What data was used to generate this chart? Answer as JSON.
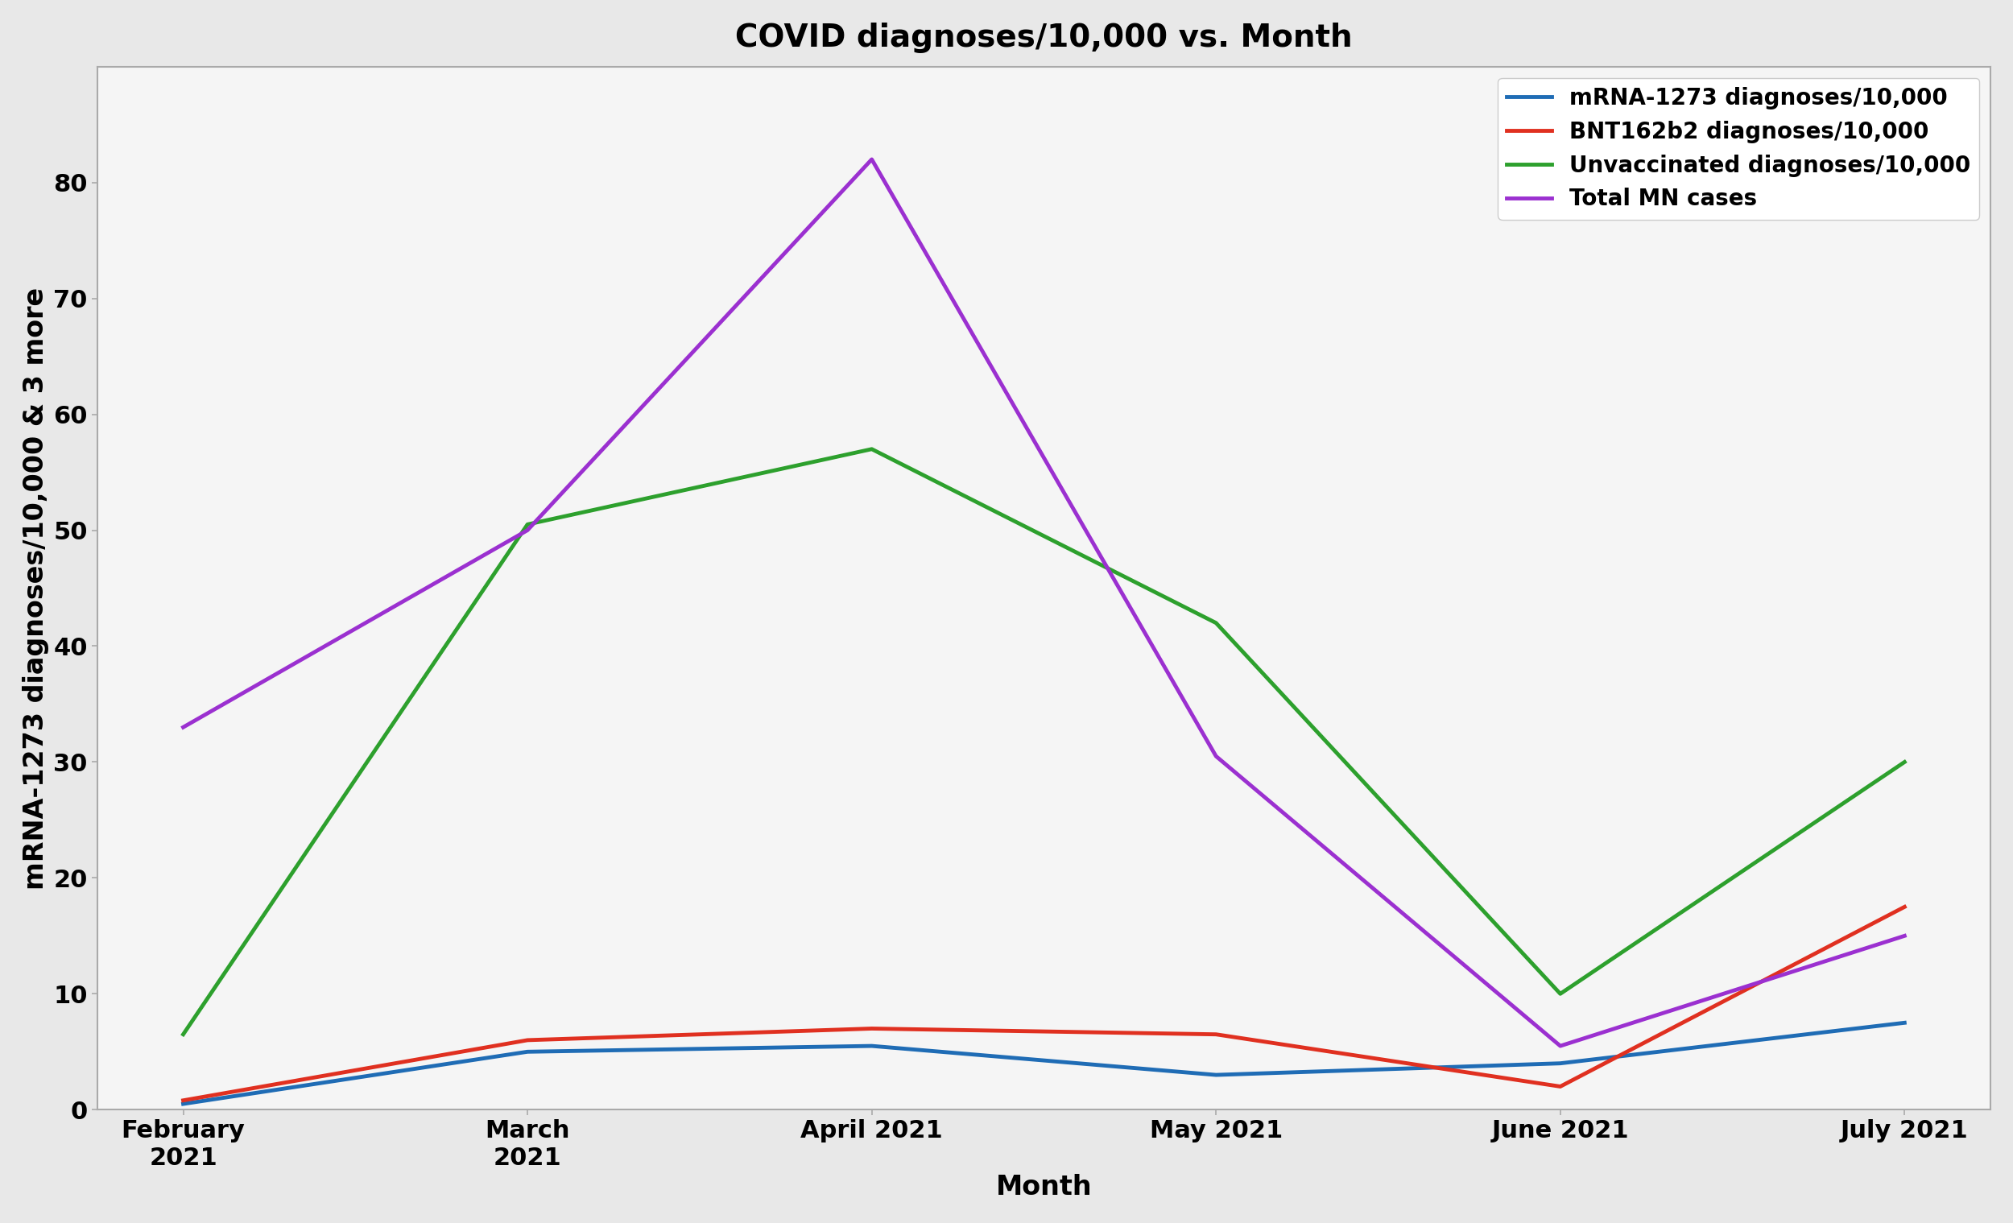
{
  "title": "COVID diagnoses/10,000 vs. Month",
  "xlabel": "Month",
  "ylabel": "mRNA-1273 diagnoses/10,000 & 3 more",
  "x_labels": [
    "February\n2021",
    "March\n2021",
    "April 2021",
    "May 2021",
    "June 2021",
    "July 2021"
  ],
  "series": [
    {
      "label": "mRNA-1273 diagnoses/10,000",
      "color": "#1f6cb5",
      "linewidth": 3.5,
      "values": [
        0.5,
        5.0,
        5.5,
        3.0,
        4.0,
        7.5
      ]
    },
    {
      "label": "BNT162b2 diagnoses/10,000",
      "color": "#e03020",
      "linewidth": 3.5,
      "values": [
        0.8,
        6.0,
        7.0,
        6.5,
        2.0,
        17.5
      ]
    },
    {
      "label": "Unvaccinated diagnoses/10,000",
      "color": "#2da02d",
      "linewidth": 3.5,
      "values": [
        6.5,
        50.5,
        57.0,
        42.0,
        10.0,
        30.0
      ]
    },
    {
      "label": "Total MN cases",
      "color": "#9b30d0",
      "linewidth": 3.5,
      "values": [
        33.0,
        50.0,
        82.0,
        30.5,
        5.5,
        15.0
      ]
    }
  ],
  "ylim": [
    0,
    90
  ],
  "yticks": [
    0,
    10,
    20,
    30,
    40,
    50,
    60,
    70,
    80
  ],
  "background_color": "#e8e8e8",
  "plot_background_color": "#f5f5f5",
  "title_fontsize": 28,
  "axis_label_fontsize": 24,
  "tick_fontsize": 22,
  "legend_fontsize": 20
}
